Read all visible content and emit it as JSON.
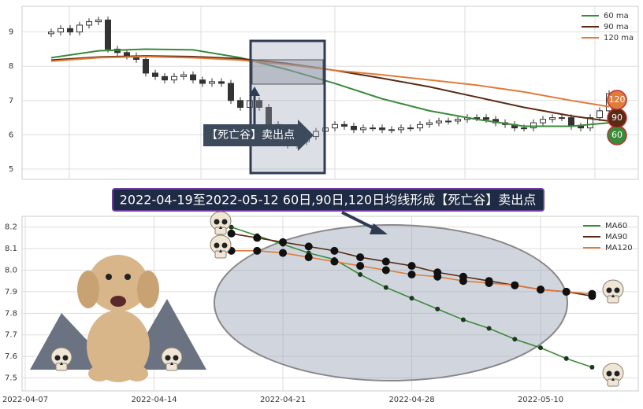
{
  "chart_data": [
    {
      "type": "candlestick",
      "open": [
        8.95,
        9.0,
        9.1,
        9.0,
        9.2,
        9.3,
        9.35,
        8.5,
        8.4,
        8.3,
        8.2,
        7.8,
        7.7,
        7.6,
        7.7,
        7.75,
        7.6,
        7.5,
        7.55,
        7.5,
        7.0,
        6.8,
        7.0,
        6.8,
        6.3,
        5.9,
        5.7,
        5.8,
        5.95,
        6.1,
        6.2,
        6.3,
        6.25,
        6.15,
        6.2,
        6.2,
        6.15,
        6.15,
        6.2,
        6.2,
        6.3,
        6.35,
        6.4,
        6.4,
        6.45,
        6.5,
        6.5,
        6.45,
        6.35,
        6.3,
        6.2,
        6.2,
        6.35,
        6.45,
        6.5,
        6.5,
        6.25,
        6.2,
        6.5,
        6.7
      ],
      "high": [
        9.1,
        9.2,
        9.2,
        9.3,
        9.4,
        9.45,
        9.45,
        8.6,
        8.5,
        8.4,
        8.3,
        7.9,
        7.8,
        7.8,
        7.85,
        7.85,
        7.7,
        7.65,
        7.65,
        7.6,
        7.1,
        7.1,
        7.1,
        6.9,
        6.4,
        6.0,
        5.9,
        6.05,
        6.2,
        6.3,
        6.4,
        6.4,
        6.35,
        6.3,
        6.3,
        6.3,
        6.25,
        6.3,
        6.3,
        6.4,
        6.45,
        6.5,
        6.5,
        6.55,
        6.6,
        6.6,
        6.6,
        6.55,
        6.45,
        6.4,
        6.3,
        6.45,
        6.55,
        6.6,
        6.6,
        6.6,
        6.35,
        6.6,
        6.8,
        7.3
      ],
      "low": [
        8.85,
        8.9,
        8.9,
        8.9,
        9.1,
        9.2,
        8.4,
        8.3,
        8.2,
        8.1,
        7.7,
        7.6,
        7.5,
        7.5,
        7.6,
        7.5,
        7.4,
        7.4,
        7.4,
        6.9,
        6.7,
        6.7,
        6.7,
        6.2,
        5.8,
        5.6,
        5.6,
        5.7,
        5.85,
        6.0,
        6.1,
        6.15,
        6.05,
        6.05,
        6.1,
        6.05,
        6.05,
        6.05,
        6.1,
        6.1,
        6.2,
        6.25,
        6.3,
        6.3,
        6.35,
        6.4,
        6.35,
        6.25,
        6.2,
        6.1,
        6.1,
        6.1,
        6.25,
        6.35,
        6.4,
        6.15,
        6.1,
        6.1,
        6.4,
        6.6
      ],
      "close": [
        9.0,
        9.1,
        9.0,
        9.2,
        9.3,
        9.35,
        8.5,
        8.4,
        8.3,
        8.2,
        7.8,
        7.7,
        7.6,
        7.7,
        7.75,
        7.6,
        7.5,
        7.55,
        7.5,
        7.0,
        6.8,
        7.0,
        6.8,
        6.3,
        5.9,
        5.7,
        5.8,
        5.95,
        6.1,
        6.2,
        6.3,
        6.25,
        6.15,
        6.2,
        6.2,
        6.15,
        6.15,
        6.2,
        6.2,
        6.3,
        6.35,
        6.4,
        6.4,
        6.45,
        6.5,
        6.5,
        6.45,
        6.35,
        6.3,
        6.2,
        6.2,
        6.35,
        6.45,
        6.5,
        6.5,
        6.25,
        6.2,
        6.5,
        6.7,
        7.2
      ],
      "series": [
        {
          "name": "60 ma",
          "end_label": "60",
          "color": "#3a8a3a",
          "x": [
            0,
            5,
            10,
            15,
            20,
            25,
            30,
            35,
            40,
            45,
            50,
            55,
            59
          ],
          "values": [
            8.25,
            8.45,
            8.5,
            8.48,
            8.25,
            7.9,
            7.5,
            7.05,
            6.7,
            6.45,
            6.25,
            6.25,
            6.35
          ]
        },
        {
          "name": "90 ma",
          "end_label": "90",
          "color": "#5a2a14",
          "x": [
            0,
            5,
            10,
            15,
            20,
            25,
            30,
            35,
            40,
            45,
            50,
            55,
            59
          ],
          "values": [
            8.18,
            8.27,
            8.3,
            8.28,
            8.22,
            8.08,
            7.88,
            7.65,
            7.4,
            7.1,
            6.8,
            6.55,
            6.4
          ]
        },
        {
          "name": "120 ma",
          "end_label": "120",
          "color": "#e07b39",
          "x": [
            0,
            5,
            10,
            15,
            20,
            25,
            30,
            35,
            40,
            45,
            50,
            55,
            59
          ],
          "values": [
            8.15,
            8.25,
            8.28,
            8.25,
            8.18,
            8.05,
            7.88,
            7.75,
            7.6,
            7.45,
            7.25,
            7.0,
            6.82
          ]
        }
      ],
      "ylim": [
        4.7,
        9.75
      ],
      "yticks": [
        5,
        6,
        7,
        8,
        9
      ],
      "annotation": "【死亡谷】卖出点"
    },
    {
      "type": "line",
      "title": "2022-04-19至2022-05-12 60日,90日,120日均线形成【死亡谷】卖出点",
      "categories": [
        "2022-04-07",
        null,
        null,
        null,
        null,
        "2022-04-14",
        null,
        null,
        null,
        null,
        "2022-04-21",
        null,
        null,
        null,
        null,
        "2022-04-28",
        null,
        null,
        null,
        null,
        "2022-05-10",
        null,
        null,
        null
      ],
      "series": [
        {
          "name": "MA60",
          "color": "#3a8a3a",
          "values": [
            null,
            null,
            null,
            null,
            null,
            null,
            null,
            null,
            8.2,
            8.16,
            8.12,
            8.08,
            8.05,
            7.98,
            7.92,
            7.87,
            7.82,
            7.77,
            7.73,
            7.68,
            7.64,
            7.59,
            7.55,
            null
          ]
        },
        {
          "name": "MA90",
          "color": "#5a2a14",
          "values": [
            null,
            null,
            null,
            null,
            null,
            null,
            null,
            null,
            8.17,
            8.15,
            8.13,
            8.11,
            8.09,
            8.06,
            8.04,
            8.02,
            7.99,
            7.97,
            7.95,
            7.93,
            7.91,
            7.9,
            7.88,
            null
          ]
        },
        {
          "name": "MA120",
          "color": "#e07b39",
          "values": [
            null,
            null,
            null,
            null,
            null,
            null,
            null,
            null,
            8.09,
            8.09,
            8.08,
            8.06,
            8.04,
            8.02,
            8.0,
            7.98,
            7.97,
            7.95,
            7.94,
            7.93,
            7.91,
            7.9,
            7.89,
            null
          ]
        }
      ],
      "ylim": [
        7.44,
        8.25
      ],
      "yticks": [
        {
          "value": 7.5,
          "label": "7.5"
        },
        7.6,
        7.7,
        7.8,
        7.9,
        {
          "value": 8.0,
          "label": "8.0"
        },
        8.1,
        8.2
      ]
    }
  ]
}
